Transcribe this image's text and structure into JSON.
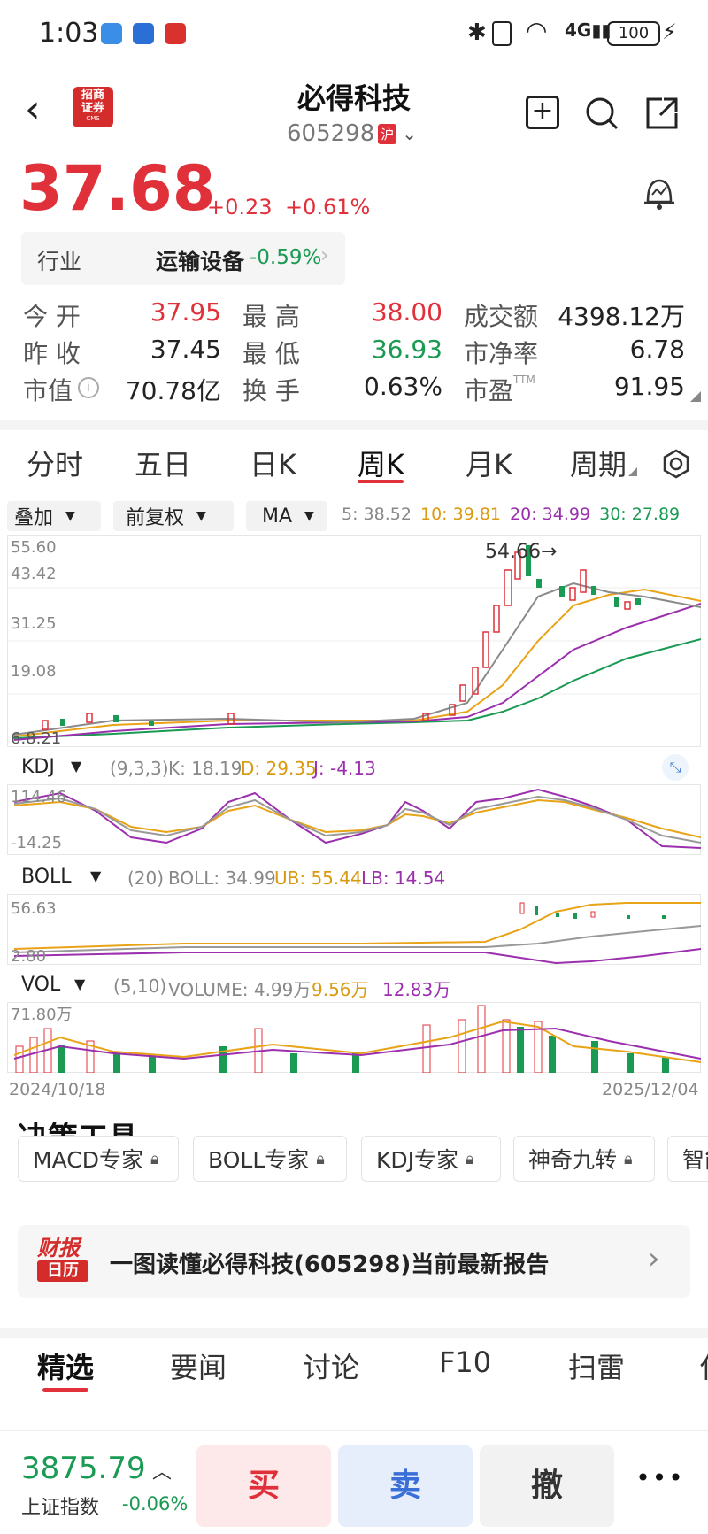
{
  "status_bar": {
    "time": "1:03",
    "battery": "100"
  },
  "header": {
    "broker_logo_top": "招商",
    "broker_logo_mid": "证券",
    "broker_logo_bottom": "CMS",
    "title": "必得科技",
    "code": "605298",
    "market": "沪"
  },
  "quote": {
    "price": "37.68",
    "change": "+0.23",
    "change_pct": "+0.61%"
  },
  "industry": {
    "label": "行业",
    "name": "运输设备",
    "change": "-0.59%"
  },
  "stats": {
    "open_label": "今 开",
    "open": "37.95",
    "high_label": "最 高",
    "high": "38.00",
    "amount_label": "成交额",
    "amount": "4398.12万",
    "prev_label": "昨 收",
    "prev": "37.45",
    "low_label": "最 低",
    "low": "36.93",
    "pb_label": "市净率",
    "pb": "6.78",
    "mcap_label": "市值",
    "mcap": "70.78亿",
    "turnover_label": "换 手",
    "turnover": "0.63%",
    "pe_label": "市盈",
    "pe_sup": "TTM",
    "pe": "91.95"
  },
  "period_tabs": [
    "分时",
    "五日",
    "日K",
    "周K",
    "月K",
    "周期"
  ],
  "controls": {
    "overlay": "叠加",
    "adjust": "前复权",
    "ma": "MA"
  },
  "ma_legend": {
    "ma5": "5: 38.52",
    "ma10": "10: 39.81",
    "ma20": "20: 34.99",
    "ma30": "30: 27.89"
  },
  "kline_axis": {
    "y1": "55.60",
    "y2": "43.42",
    "y3": "31.25",
    "y4": "19.08",
    "low_mark": "6.8.21",
    "peak": "54.66→"
  },
  "kdj": {
    "name": "KDJ",
    "params": "(9,3,3)",
    "k": "K: 18.19",
    "d": "D: 29.35",
    "j": "J: -4.13",
    "y1": "114.46",
    "y2": "-14.25"
  },
  "boll": {
    "name": "BOLL",
    "params": "(20)",
    "boll": "BOLL: 34.99",
    "ub": "UB: 55.44",
    "lb": "LB: 14.54",
    "y1": "56.63",
    "y2": "2.80"
  },
  "vol": {
    "name": "VOL",
    "params": "(5,10)",
    "volume": "VOLUME: 4.99万",
    "v5": "9.56万",
    "v10": "12.83万",
    "y1": "71.80万"
  },
  "dates": {
    "start": "2024/10/18",
    "end": "2025/12/04"
  },
  "tools": {
    "title": "决策工具",
    "chips": [
      "MACD专家",
      "BOLL专家",
      "KDJ专家",
      "神奇九转",
      "智能"
    ]
  },
  "report": {
    "logo_top": "财报",
    "logo_bottom": "日历",
    "text": "一图读懂必得科技(605298)当前最新报告"
  },
  "news_tabs": [
    "精选",
    "要闻",
    "讨论",
    "F10",
    "扫雷",
    "化"
  ],
  "index": {
    "value": "3875.79",
    "name": "上证指数",
    "change": "-0.06%"
  },
  "actions": {
    "buy": "买",
    "sell": "卖",
    "cancel": "撤",
    "more": "•••"
  },
  "colors": {
    "up": "#e0303a",
    "down": "#1a9a52",
    "ma10": "#e8a317",
    "ma20": "#9b2fae",
    "ma5": "#888888"
  }
}
